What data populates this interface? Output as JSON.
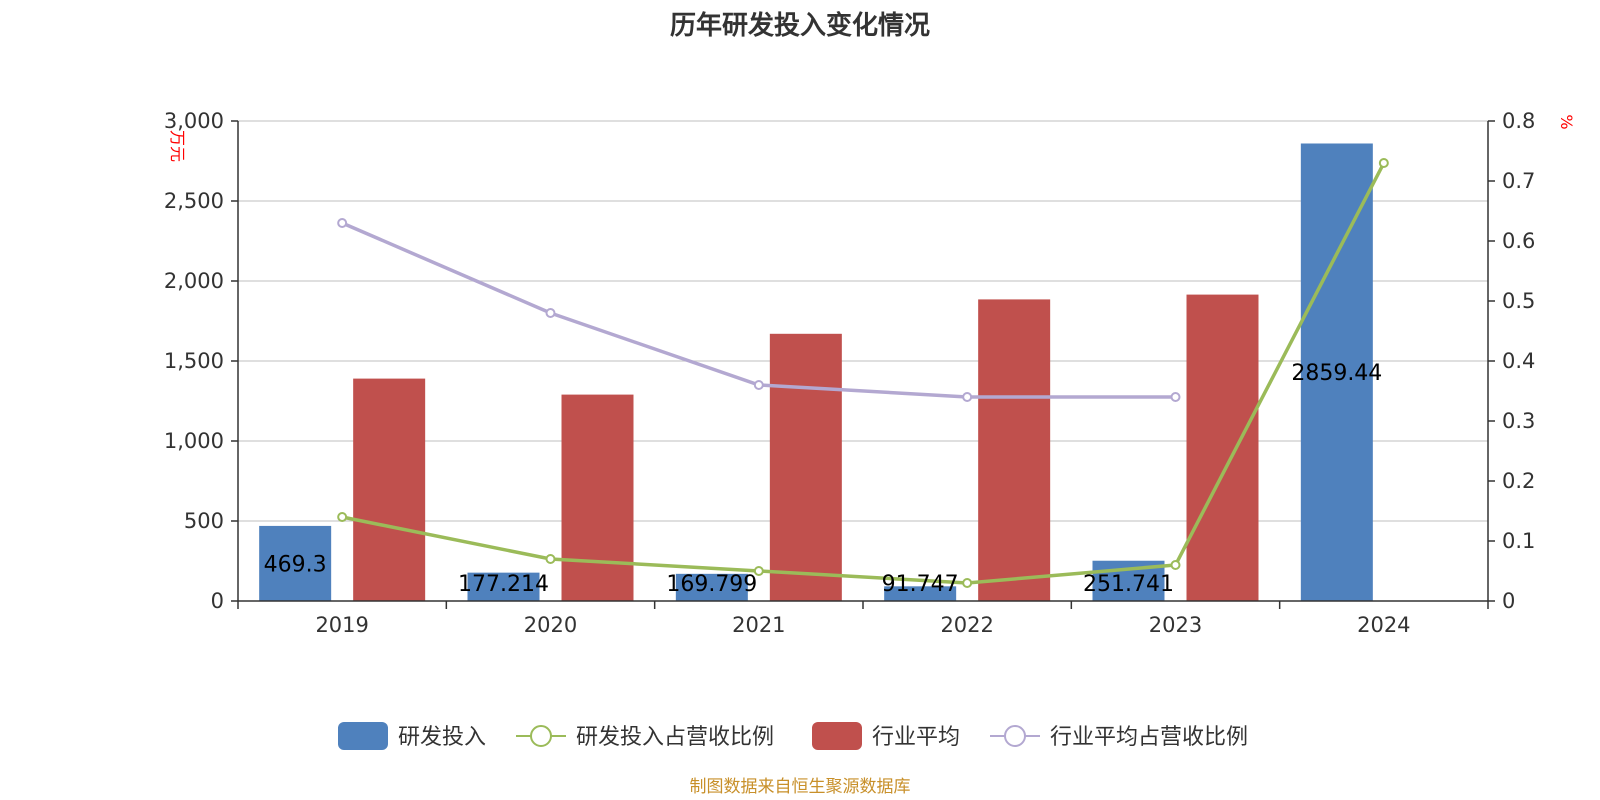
{
  "chart_data": {
    "type": "bar",
    "title": "历年研发投入变化情况",
    "categories": [
      "2019",
      "2020",
      "2021",
      "2022",
      "2023",
      "2024"
    ],
    "series": [
      {
        "name": "研发投入",
        "kind": "bar",
        "axis": "left",
        "color": "#4f81bd",
        "values": [
          469.3,
          177.214,
          169.799,
          91.747,
          251.741,
          2859.44
        ],
        "labels": [
          "469.3",
          "177.214",
          "169.799",
          "91.747",
          "251.741",
          "2859.44"
        ]
      },
      {
        "name": "研发投入占营收比例",
        "kind": "line",
        "axis": "right",
        "color": "#9bbb59",
        "values": [
          0.14,
          0.07,
          0.05,
          0.03,
          0.06,
          0.73
        ]
      },
      {
        "name": "行业平均",
        "kind": "bar",
        "axis": "left",
        "color": "#c0504d",
        "values": [
          1390,
          1290,
          1670,
          1885,
          1915,
          null
        ]
      },
      {
        "name": "行业平均占营收比例",
        "kind": "line",
        "axis": "right",
        "color": "#b3a8d1",
        "values": [
          0.63,
          0.48,
          0.36,
          0.34,
          0.34,
          null
        ]
      }
    ],
    "y_left": {
      "label": "万元",
      "min": 0,
      "max": 3000,
      "ticks": [
        0,
        500,
        1000,
        1500,
        2000,
        2500,
        3000
      ],
      "tick_labels": [
        "0",
        "500",
        "1,000",
        "1,500",
        "2,000",
        "2,500",
        "3,000"
      ]
    },
    "y_right": {
      "label": "%",
      "min": 0,
      "max": 0.8,
      "ticks": [
        0,
        0.1,
        0.2,
        0.3,
        0.4,
        0.5,
        0.6,
        0.7,
        0.8
      ],
      "tick_labels": [
        "0",
        "0.1",
        "0.2",
        "0.3",
        "0.4",
        "0.5",
        "0.6",
        "0.7",
        "0.8"
      ]
    },
    "grid": true,
    "legend_position": "bottom",
    "source": "制图数据来自恒生聚源数据库"
  }
}
